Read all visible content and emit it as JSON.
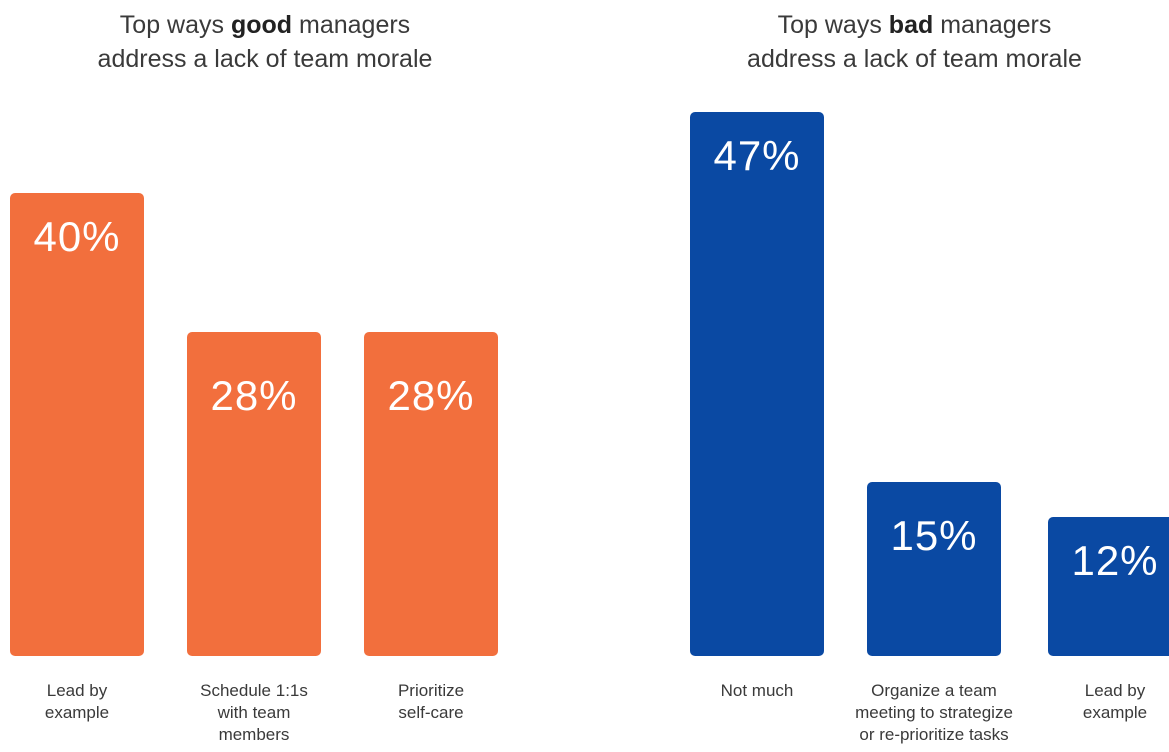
{
  "chart_data": [
    {
      "type": "bar",
      "title_parts": [
        "Top ways ",
        "good",
        " managers",
        "address a lack of team morale"
      ],
      "categories": [
        [
          "Lead by",
          "example"
        ],
        [
          "Schedule 1:1s",
          "with team",
          "members"
        ],
        [
          "Prioritize",
          "self-care"
        ]
      ],
      "values": [
        40,
        28,
        28
      ],
      "value_labels": [
        "40%",
        "28%",
        "28%"
      ],
      "ylim": [
        0,
        47
      ],
      "color": "#f26f3d"
    },
    {
      "type": "bar",
      "title_parts": [
        "Top ways ",
        "bad",
        " managers",
        "address a lack of team morale"
      ],
      "categories": [
        [
          "Not much"
        ],
        [
          "Organize a team",
          "meeting to strategize",
          "or re-prioritize tasks"
        ],
        [
          "Lead by",
          "example"
        ]
      ],
      "values": [
        47,
        15,
        12
      ],
      "value_labels": [
        "47%",
        "15%",
        "12%"
      ],
      "ylim": [
        0,
        47
      ],
      "color": "#0a49a3"
    }
  ]
}
